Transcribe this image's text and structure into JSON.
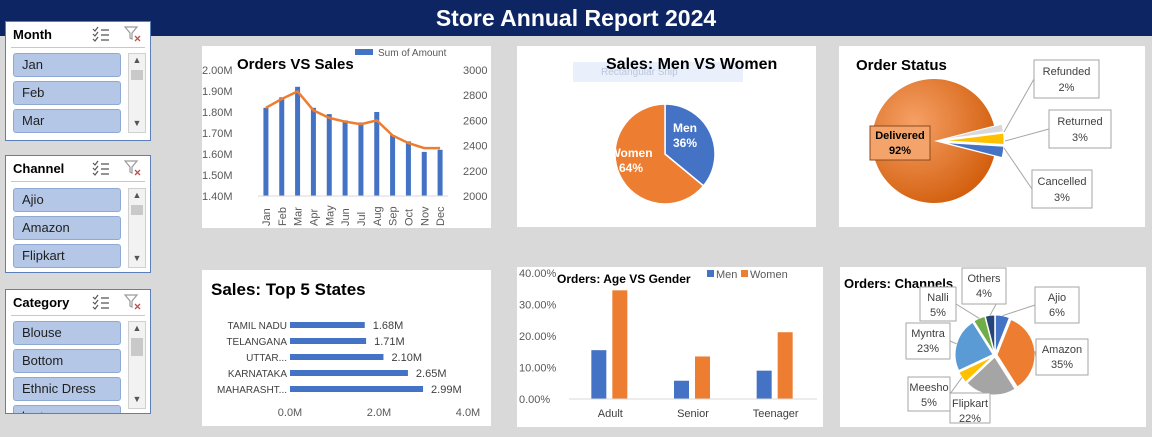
{
  "header": {
    "title": "Store Annual Report  2024"
  },
  "slicers": [
    {
      "title": "Month",
      "items": [
        "Jan",
        "Feb",
        "Mar"
      ]
    },
    {
      "title": "Channel",
      "items": [
        "Ajio",
        "Amazon",
        "Flipkart"
      ]
    },
    {
      "title": "Category",
      "items": [
        "Blouse",
        "Bottom",
        "Ethnic Dress",
        "kurta"
      ]
    }
  ],
  "icons": {
    "multi_select": "multi-select-icon",
    "clear_filter": "clear-filter-icon",
    "scroll_up": "chevron-up-icon",
    "scroll_down": "chevron-down-icon"
  },
  "colors": {
    "header": "#0d2663",
    "blue": "#4472c4",
    "orange": "#ed7d31",
    "gray": "#a5a5a5",
    "yellow": "#ffc000",
    "lightblue": "#5b9bd5",
    "green": "#70ad47",
    "navy": "#264478",
    "slicer_item": "#b4c7e7"
  },
  "chart_data": [
    {
      "type": "bar",
      "title": "Orders VS Sales",
      "categories": [
        "Jan",
        "Feb",
        "Mar",
        "Apr",
        "May",
        "Jun",
        "Jul",
        "Aug",
        "Sep",
        "Oct",
        "Nov",
        "Dec"
      ],
      "series": [
        {
          "name": "Sum of Amount",
          "type": "bar",
          "axis": "left",
          "values": [
            1.82,
            1.87,
            1.92,
            1.82,
            1.79,
            1.76,
            1.75,
            1.8,
            1.69,
            1.66,
            1.61,
            1.62
          ]
        },
        {
          "type": "line",
          "axis": "right",
          "values": [
            2700,
            2770,
            2830,
            2680,
            2620,
            2590,
            2570,
            2600,
            2480,
            2420,
            2380,
            2380
          ]
        }
      ],
      "y_ticks": [
        "2.00M",
        "1.90M",
        "1.80M",
        "1.70M",
        "1.60M",
        "1.50M",
        "1.40M"
      ],
      "y2_ticks": [
        "3000",
        "2800",
        "2600",
        "2400",
        "2200",
        "2000"
      ],
      "ylim": [
        1.4,
        2.0
      ],
      "y2lim": [
        2000,
        3000
      ],
      "legend": "top-right"
    },
    {
      "type": "pie",
      "title": "Sales: Men VS Women",
      "hidden_label": "Rectangular Snip",
      "slices": [
        {
          "label": "Men",
          "value": 36,
          "value_label": "36%"
        },
        {
          "label": "Women",
          "value": 64,
          "value_label": "64%"
        }
      ]
    },
    {
      "type": "pie",
      "title": "Order Status",
      "slices": [
        {
          "label": "Delivered",
          "value": 92,
          "value_label": "92%"
        },
        {
          "label": "Refunded",
          "value": 2,
          "value_label": "2%"
        },
        {
          "label": "Returned",
          "value": 3,
          "value_label": "3%"
        },
        {
          "label": "Cancelled",
          "value": 3,
          "value_label": "3%"
        }
      ]
    },
    {
      "type": "bar",
      "orientation": "horizontal",
      "title": "Sales: Top 5 States",
      "categories": [
        "TAMIL NADU",
        "TELANGANA",
        "UTTAR...",
        "KARNATAKA",
        "MAHARASHT..."
      ],
      "values": [
        1.68,
        1.71,
        2.1,
        2.65,
        2.99
      ],
      "value_labels": [
        "1.68M",
        "1.71M",
        "2.10M",
        "2.65M",
        "2.99M"
      ],
      "x_ticks": [
        "0.0M",
        "2.0M",
        "4.0M"
      ],
      "xlim": [
        0,
        4
      ]
    },
    {
      "type": "bar",
      "title": "Orders: Age VS Gender",
      "categories": [
        "Adult",
        "Senior",
        "Teenager"
      ],
      "series": [
        {
          "name": "Men",
          "values": [
            15.5,
            5.8,
            9.0
          ]
        },
        {
          "name": "Women",
          "values": [
            34.5,
            13.5,
            21.2
          ]
        }
      ],
      "y_ticks": [
        "40.00%",
        "30.00%",
        "20.00%",
        "10.00%",
        "0.00%"
      ],
      "ylim": [
        0,
        40
      ],
      "legend": "top-right"
    },
    {
      "type": "pie",
      "title": "Orders: Channels",
      "slices": [
        {
          "label": "Ajio",
          "value": 6,
          "value_label": "6%"
        },
        {
          "label": "Amazon",
          "value": 35,
          "value_label": "35%"
        },
        {
          "label": "Flipkart",
          "value": 22,
          "value_label": "22%"
        },
        {
          "label": "Meesho",
          "value": 5,
          "value_label": "5%"
        },
        {
          "label": "Myntra",
          "value": 23,
          "value_label": "23%"
        },
        {
          "label": "Nalli",
          "value": 5,
          "value_label": "5%"
        },
        {
          "label": "Others",
          "value": 4,
          "value_label": "4%"
        }
      ]
    }
  ]
}
